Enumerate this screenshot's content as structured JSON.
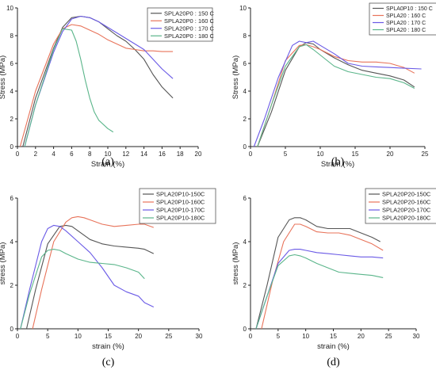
{
  "chart_data": [
    {
      "type": "line",
      "panel_label": "(a)",
      "xlabel": "Strain (%)",
      "ylabel": "Stress (MPa)",
      "xlim": [
        0,
        20
      ],
      "ylim": [
        0,
        10
      ],
      "xticks": [
        0,
        2,
        4,
        6,
        8,
        10,
        12,
        14,
        16,
        18,
        20
      ],
      "yticks": [
        0,
        2,
        4,
        6,
        8,
        10
      ],
      "legend_position": "top-right",
      "grid": false,
      "series": [
        {
          "name": "SPLA20P0 : 150 C",
          "color": "#555555",
          "x": [
            0.6,
            2,
            4,
            5,
            6,
            7,
            8,
            9,
            10,
            11,
            12,
            13,
            14,
            15,
            16,
            17.2
          ],
          "y": [
            0,
            3.5,
            7.1,
            8.6,
            9.3,
            9.4,
            9.3,
            9.0,
            8.5,
            8.0,
            7.6,
            7.0,
            6.3,
            5.2,
            4.3,
            3.5
          ]
        },
        {
          "name": "SPLA20P0 : 160 C",
          "color": "#e8735a",
          "x": [
            0.3,
            2,
            4,
            5,
            6,
            7,
            8,
            9,
            10,
            11,
            12,
            13,
            14,
            15,
            16,
            17.2
          ],
          "y": [
            0,
            4.0,
            7.4,
            8.5,
            8.8,
            8.7,
            8.4,
            8.1,
            7.7,
            7.4,
            7.1,
            7.0,
            6.9,
            6.9,
            6.85,
            6.85
          ]
        },
        {
          "name": "SPLA20P0 : 170 C",
          "color": "#6a5ae6",
          "x": [
            0.8,
            2,
            4,
            5,
            6,
            7,
            8,
            9,
            10,
            11,
            12,
            13,
            14,
            15,
            16,
            17.2
          ],
          "y": [
            0,
            3.0,
            6.8,
            8.3,
            9.2,
            9.4,
            9.3,
            9.0,
            8.6,
            8.2,
            7.8,
            7.4,
            7.0,
            6.3,
            5.6,
            4.9
          ]
        },
        {
          "name": "SPLA20P0 : 180 C",
          "color": "#5ab58a",
          "x": [
            0.8,
            2,
            4,
            5,
            6,
            6.5,
            7,
            7.5,
            8,
            8.5,
            9,
            10,
            10.6
          ],
          "y": [
            0,
            3.0,
            7.0,
            8.5,
            8.4,
            7.6,
            6.3,
            4.8,
            3.5,
            2.5,
            1.9,
            1.3,
            1.05
          ]
        }
      ]
    },
    {
      "type": "line",
      "panel_label": "(b)",
      "xlabel": "Strain (%)",
      "ylabel": "Stress (MPa)",
      "xlim": [
        0,
        25
      ],
      "ylim": [
        0,
        10
      ],
      "xticks": [
        0,
        5,
        10,
        15,
        20,
        25
      ],
      "yticks": [
        0,
        2,
        4,
        6,
        8,
        10
      ],
      "legend_position": "top-right",
      "grid": false,
      "series": [
        {
          "name": "SPLA0P10 : 150 C",
          "color": "#555555",
          "x": [
            1,
            3,
            5,
            7,
            8,
            9,
            10,
            12,
            14,
            16,
            18,
            20,
            22,
            23.5
          ],
          "y": [
            0,
            2.5,
            5.5,
            7.2,
            7.5,
            7.4,
            7.0,
            6.4,
            5.9,
            5.5,
            5.3,
            5.1,
            4.8,
            4.3
          ]
        },
        {
          "name": "SPLA20 : 160 C",
          "color": "#e8735a",
          "x": [
            1,
            3,
            5,
            7,
            8,
            9,
            10,
            12,
            14,
            16,
            18,
            20,
            22,
            23.5
          ],
          "y": [
            0,
            3.0,
            6.2,
            7.3,
            7.35,
            7.2,
            7.0,
            6.5,
            6.2,
            6.1,
            6.1,
            6.0,
            5.7,
            5.3
          ]
        },
        {
          "name": "SPLA20 : 170 C",
          "color": "#6a5ae6",
          "x": [
            0.5,
            2,
            4,
            6,
            7,
            8,
            9,
            10,
            12,
            14,
            16,
            18,
            20,
            22,
            24.5
          ],
          "y": [
            0,
            2.0,
            5.0,
            7.3,
            7.6,
            7.5,
            7.6,
            7.3,
            6.7,
            6.0,
            5.8,
            5.75,
            5.7,
            5.65,
            5.6
          ]
        },
        {
          "name": "SPLA20 : 180 C",
          "color": "#5ab58a",
          "x": [
            1,
            3,
            5,
            7,
            8,
            9,
            10,
            12,
            14,
            16,
            18,
            20,
            22,
            23.5
          ],
          "y": [
            0,
            3.0,
            5.8,
            7.2,
            7.35,
            7.0,
            6.6,
            5.8,
            5.4,
            5.2,
            5.0,
            4.9,
            4.6,
            4.2
          ]
        }
      ]
    },
    {
      "type": "line",
      "panel_label": "(c)",
      "xlabel": "strain (%)",
      "ylabel": "stress (MPa)",
      "xlim": [
        0,
        30
      ],
      "ylim": [
        0,
        6
      ],
      "xticks": [
        0,
        5,
        10,
        15,
        20,
        25,
        30
      ],
      "yticks": [
        0,
        2,
        4,
        6
      ],
      "legend_position": "top-right",
      "grid": false,
      "series": [
        {
          "name": "SPLA20P10-150C",
          "color": "#555555",
          "x": [
            1.5,
            3,
            5,
            7,
            8,
            9,
            10,
            12,
            14,
            16,
            18,
            20,
            21,
            22.5
          ],
          "y": [
            0,
            1.8,
            3.9,
            4.7,
            4.75,
            4.7,
            4.5,
            4.1,
            3.9,
            3.8,
            3.75,
            3.7,
            3.65,
            3.45
          ]
        },
        {
          "name": "SPLA20P10-160C",
          "color": "#e8735a",
          "x": [
            2.5,
            4,
            6,
            8,
            9,
            10,
            11,
            12,
            14,
            16,
            18,
            20,
            21,
            22.5
          ],
          "y": [
            0,
            1.8,
            4.0,
            4.9,
            5.1,
            5.15,
            5.1,
            5.0,
            4.8,
            4.7,
            4.75,
            4.8,
            4.8,
            4.65
          ]
        },
        {
          "name": "SPLA20P10-170C",
          "color": "#6a5ae6",
          "x": [
            0.5,
            2,
            4,
            5,
            6,
            7,
            8,
            10,
            12,
            14,
            16,
            18,
            20,
            21,
            22.5
          ],
          "y": [
            0,
            1.8,
            4.0,
            4.6,
            4.75,
            4.7,
            4.5,
            4.0,
            3.5,
            2.8,
            2.0,
            1.7,
            1.5,
            1.2,
            1.0
          ]
        },
        {
          "name": "SPLA20P10-180C",
          "color": "#5ab58a",
          "x": [
            0.5,
            2,
            4,
            5,
            6,
            7,
            8,
            10,
            12,
            14,
            16,
            18,
            20,
            21
          ],
          "y": [
            0,
            1.6,
            3.3,
            3.6,
            3.65,
            3.6,
            3.45,
            3.2,
            3.05,
            3.0,
            2.95,
            2.8,
            2.6,
            2.3
          ]
        }
      ]
    },
    {
      "type": "line",
      "panel_label": "(d)",
      "xlabel": "strain (%)",
      "ylabel": "stress (MPa)",
      "xlim": [
        0,
        30
      ],
      "ylim": [
        0,
        6
      ],
      "xticks": [
        0,
        5,
        10,
        15,
        20,
        25,
        30
      ],
      "yticks": [
        0,
        2,
        4,
        6
      ],
      "legend_position": "top-right",
      "grid": false,
      "series": [
        {
          "name": "SPLA20P20-150C",
          "color": "#555555",
          "x": [
            1,
            3,
            5,
            7,
            8,
            9,
            10,
            12,
            14,
            16,
            18,
            20,
            22,
            23.5
          ],
          "y": [
            0,
            2.0,
            4.2,
            5.0,
            5.1,
            5.1,
            5.0,
            4.7,
            4.6,
            4.6,
            4.6,
            4.4,
            4.2,
            4.0
          ]
        },
        {
          "name": "SPLA20P20-160C",
          "color": "#e8735a",
          "x": [
            2,
            4,
            6,
            8,
            9,
            10,
            12,
            14,
            16,
            18,
            20,
            22,
            24
          ],
          "y": [
            0,
            2.2,
            4.0,
            4.8,
            4.8,
            4.7,
            4.45,
            4.4,
            4.4,
            4.3,
            4.1,
            3.9,
            3.6
          ]
        },
        {
          "name": "SPLA20P20-170C",
          "color": "#6a5ae6",
          "x": [
            1,
            3,
            5,
            7,
            8,
            9,
            10,
            12,
            14,
            16,
            18,
            20,
            22,
            24
          ],
          "y": [
            0,
            1.5,
            3.0,
            3.6,
            3.65,
            3.65,
            3.6,
            3.5,
            3.45,
            3.4,
            3.35,
            3.3,
            3.3,
            3.25
          ]
        },
        {
          "name": "SPLA20P20-180C",
          "color": "#5ab58a",
          "x": [
            1,
            3,
            5,
            7,
            8,
            9,
            10,
            12,
            14,
            16,
            18,
            20,
            22,
            24
          ],
          "y": [
            0,
            1.5,
            2.9,
            3.35,
            3.4,
            3.35,
            3.25,
            3.0,
            2.8,
            2.6,
            2.55,
            2.5,
            2.45,
            2.35
          ]
        }
      ]
    }
  ]
}
